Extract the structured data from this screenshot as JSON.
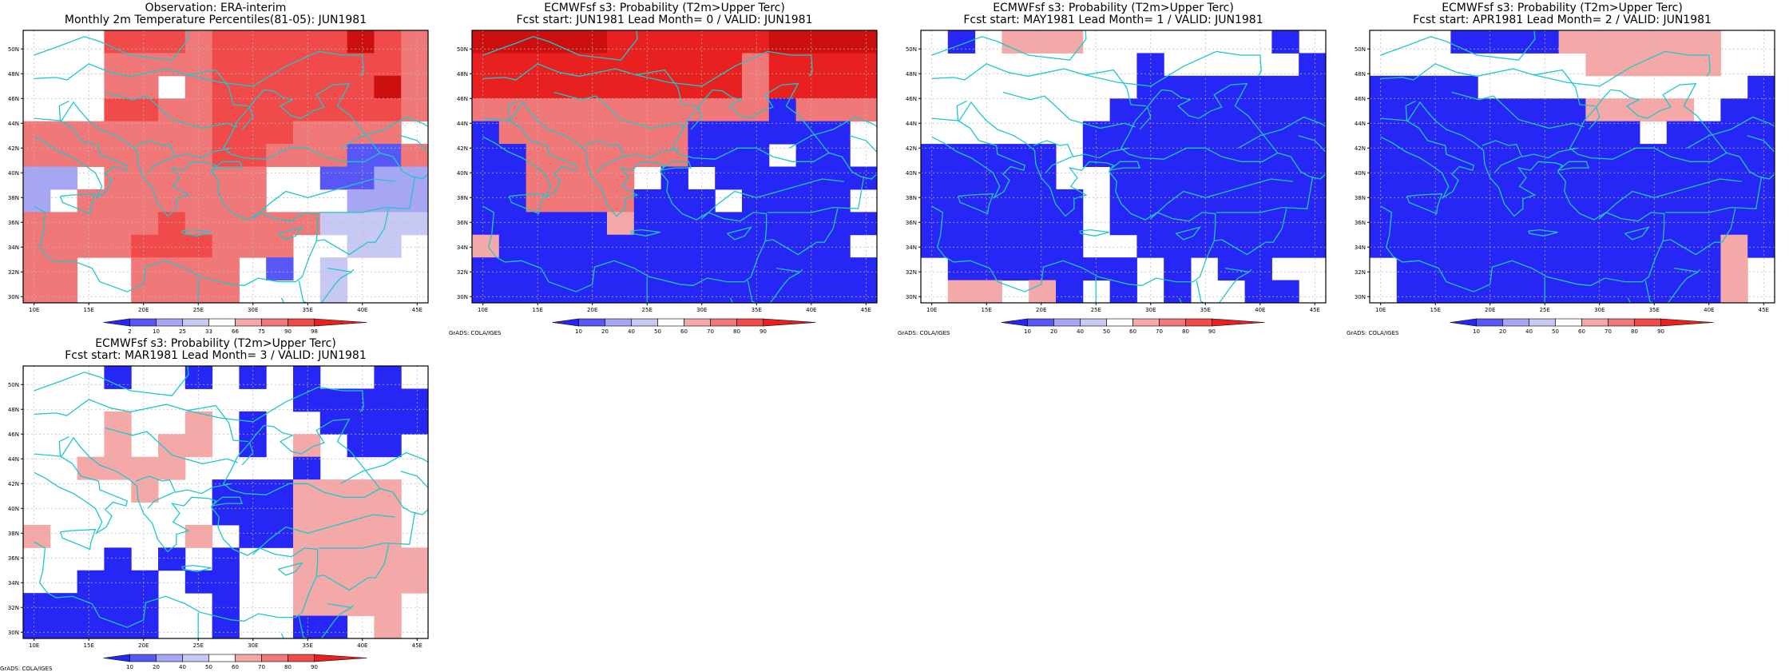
{
  "colors": {
    "dark_blue": "#2626f5",
    "mid_blue": "#5757f5",
    "light_blue": "#a6a6f5",
    "pale_blue": "#c8c8f5",
    "pale_red": "#f5a8a8",
    "light_red": "#f07878",
    "mid_red": "#f04a4a",
    "dark_red": "#e82020",
    "deep_red": "#cc0f0f",
    "coast": "#1fc8c8",
    "grid": "#bbbbbb"
  },
  "map": {
    "lat_ticks": [
      "30N",
      "32N",
      "34N",
      "36N",
      "38N",
      "40N",
      "42N",
      "44N",
      "46N",
      "48N",
      "50N"
    ],
    "lon_ticks": [
      "10E",
      "15E",
      "20E",
      "25E",
      "30E",
      "35E",
      "40E",
      "45E"
    ]
  },
  "credit": "GrADS: COLA/IGES",
  "panels": [
    {
      "title1": "Observation: ERA-interim",
      "title2": "Monthly 2m Temperature Percentiles(81-05): JUN1981",
      "colorbar_labels": [
        "2",
        "10",
        "25",
        "33",
        "66",
        "75",
        "90",
        "98"
      ],
      "show_credit": false
    },
    {
      "title1": "ECMWFsf s3: Probability (T2m>Upper Terc)",
      "title2": "Fcst start: JUN1981   Lead Month= 0 / VALID: JUN1981",
      "colorbar_labels": [
        "10",
        "20",
        "40",
        "50",
        "60",
        "70",
        "80",
        "90"
      ],
      "show_credit": true
    },
    {
      "title1": "ECMWFsf s3: Probability (T2m>Upper Terc)",
      "title2": "Fcst start: MAY1981   Lead Month= 1 / VALID: JUN1981",
      "colorbar_labels": [
        "10",
        "20",
        "40",
        "50",
        "60",
        "70",
        "80",
        "90"
      ],
      "show_credit": true
    },
    {
      "title1": "ECMWFsf s3: Probability (T2m>Upper Terc)",
      "title2": "Fcst start: APR1981   Lead Month= 2 / VALID: JUN1981",
      "colorbar_labels": [
        "10",
        "20",
        "40",
        "50",
        "60",
        "70",
        "80",
        "90"
      ],
      "show_credit": true
    },
    {
      "title1": "ECMWFsf s3: Probability (T2m>Upper Terc)",
      "title2": "Fcst start: MAR1981   Lead Month= 3 / VALID: JUN1981",
      "colorbar_labels": [
        "10",
        "20",
        "40",
        "50",
        "60",
        "70",
        "80",
        "90"
      ],
      "show_credit": true
    }
  ]
}
